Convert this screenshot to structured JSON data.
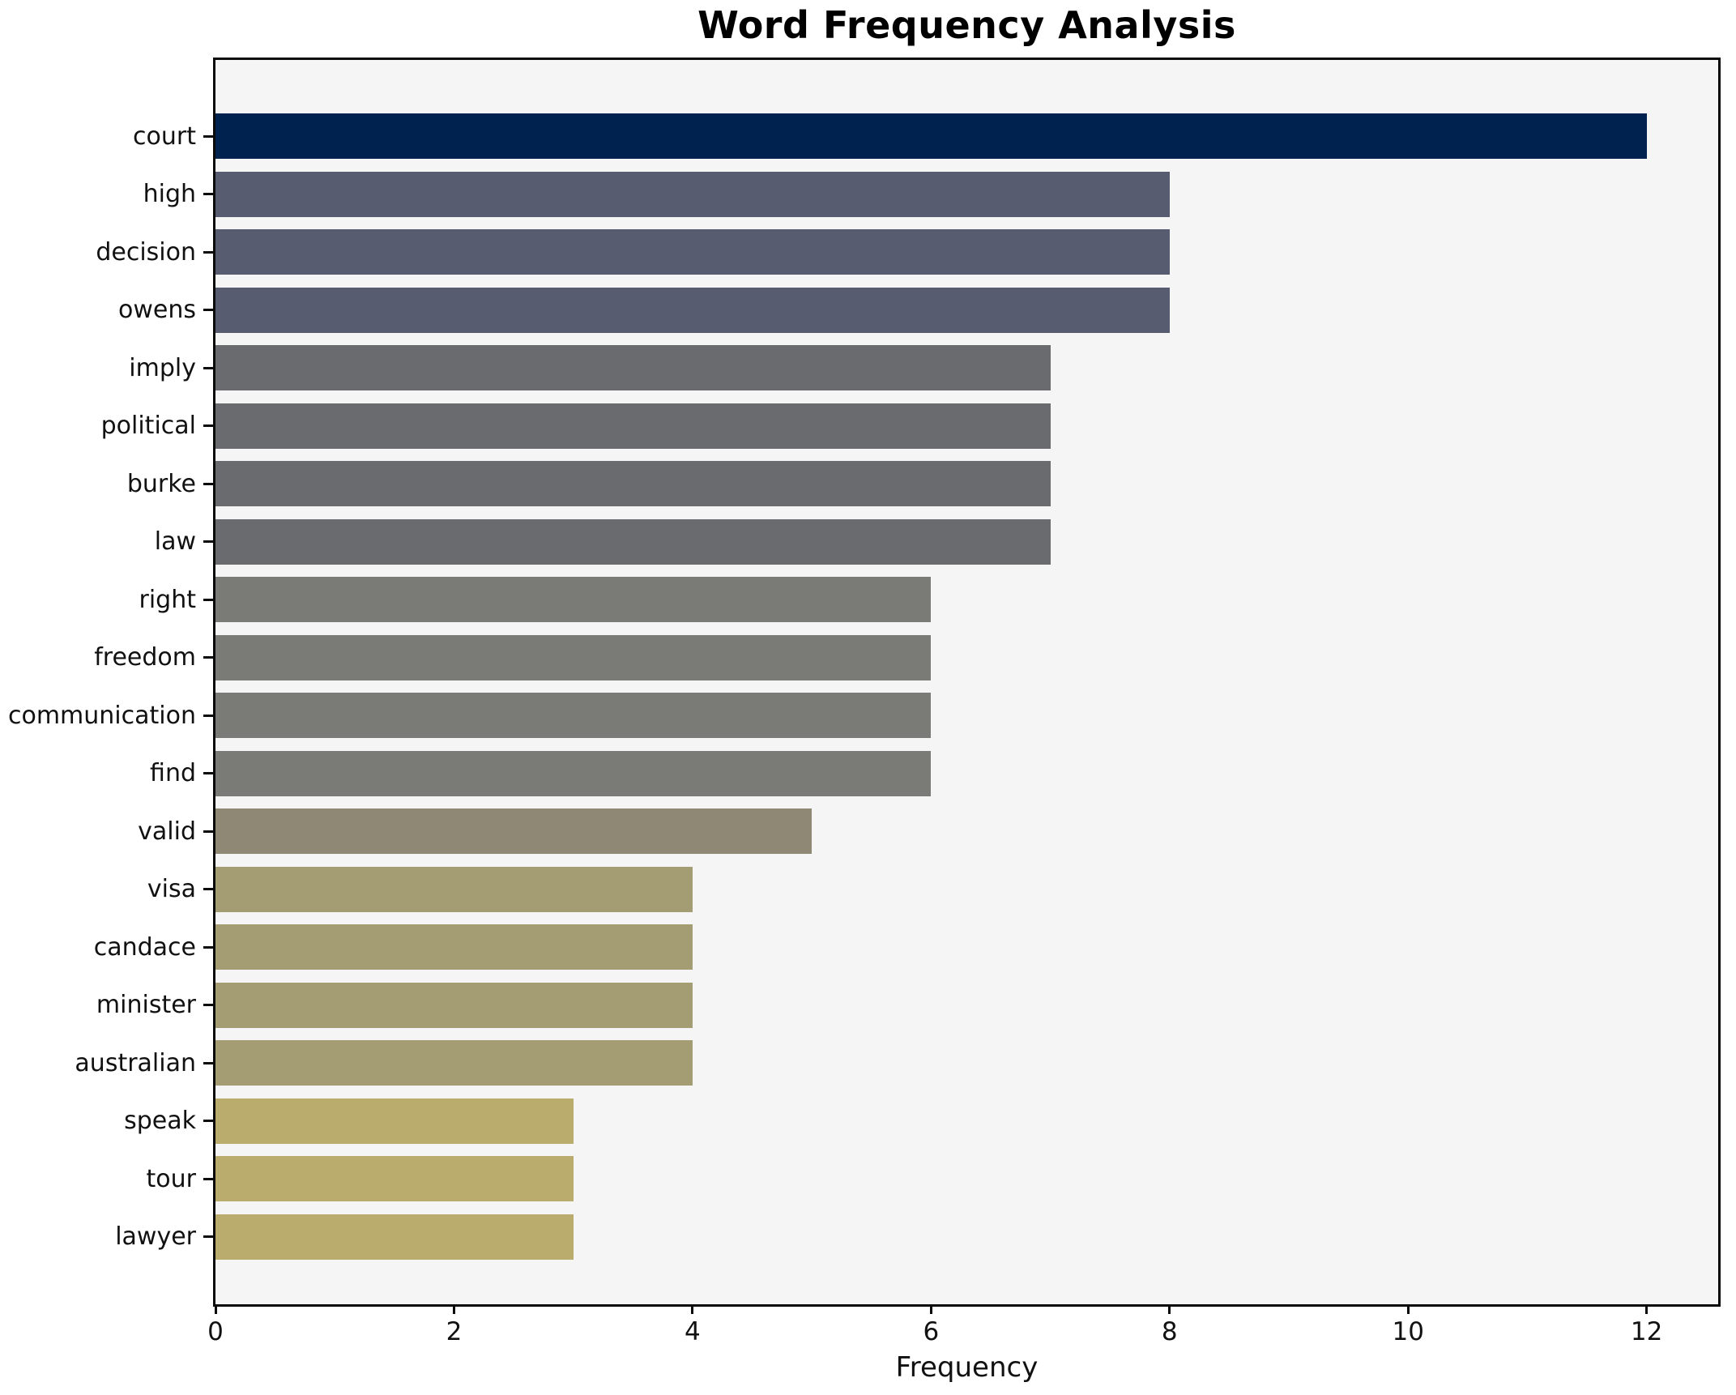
{
  "figure": {
    "title": "Word Frequency Analysis",
    "background_color": "#ffffff",
    "plot_background_color": "#f5f5f6",
    "spine_color": "#0a0a0a"
  },
  "chart_data": {
    "type": "bar",
    "orientation": "horizontal",
    "title": "Word Frequency Analysis",
    "xlabel": "Frequency",
    "ylabel": "",
    "categories": [
      "court",
      "high",
      "decision",
      "owens",
      "imply",
      "political",
      "burke",
      "law",
      "right",
      "freedom",
      "communication",
      "find",
      "valid",
      "visa",
      "candace",
      "minister",
      "australian",
      "speak",
      "tour",
      "lawyer"
    ],
    "values": [
      12,
      8,
      8,
      8,
      7,
      7,
      7,
      7,
      6,
      6,
      6,
      6,
      5,
      4,
      4,
      4,
      4,
      3,
      3,
      3
    ],
    "bar_colors": [
      "#00224e",
      "#575c70",
      "#575c70",
      "#575c70",
      "#6a6b6f",
      "#6a6b6f",
      "#6a6b6f",
      "#6a6b6f",
      "#7a7a76",
      "#7a7a76",
      "#7a7a76",
      "#7a7a76",
      "#8e8875",
      "#a49d74",
      "#a49d74",
      "#a49d74",
      "#a49d74",
      "#b9ac6c",
      "#b9ac6c",
      "#b9ac6c"
    ],
    "xticks": [
      0,
      2,
      4,
      6,
      8,
      10,
      12
    ],
    "xlim": [
      0,
      12.6
    ],
    "grid": false,
    "legend": false
  }
}
